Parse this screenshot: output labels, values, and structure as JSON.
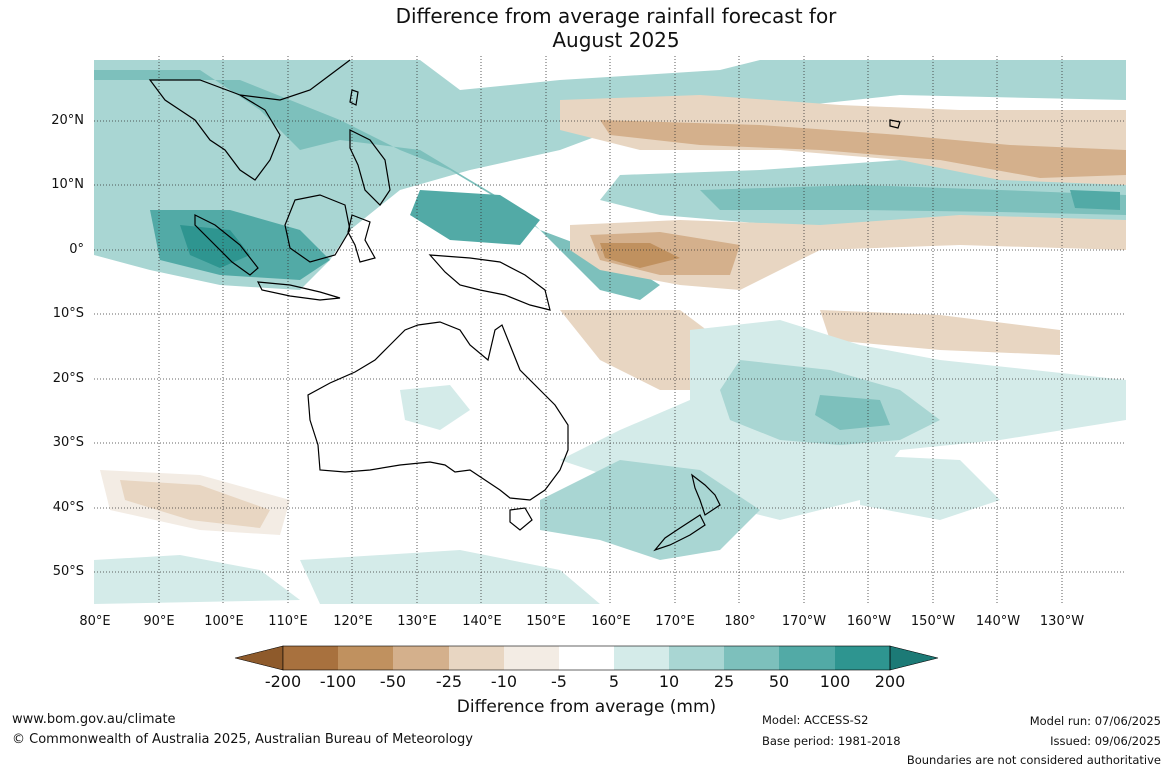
{
  "title": {
    "line1": "Difference from average rainfall forecast for",
    "line2": "August 2025"
  },
  "map": {
    "latitude_labels": [
      "20°N",
      "10°N",
      "0°",
      "10°S",
      "20°S",
      "30°S",
      "40°S",
      "50°S"
    ],
    "longitude_labels": [
      "80°E",
      "90°E",
      "100°E",
      "110°E",
      "120°E",
      "130°E",
      "140°E",
      "150°E",
      "160°E",
      "170°E",
      "180°",
      "170°W",
      "160°W",
      "150°W",
      "140°W",
      "130°W"
    ],
    "extent": {
      "lon_min": 80,
      "lon_max": 240,
      "lat_min": -55,
      "lat_max": 30
    }
  },
  "colorbar": {
    "ticks": [
      "-200",
      "-100",
      "-50",
      "-25",
      "-10",
      "-5",
      "5",
      "10",
      "25",
      "50",
      "100",
      "200"
    ],
    "colors": [
      "#8e5a2b",
      "#a8713e",
      "#c0915f",
      "#d4b08c",
      "#e8d6c2",
      "#f3ece4",
      "#ffffff",
      "#d4ebe9",
      "#a9d6d3",
      "#7dc0bc",
      "#52aaa6",
      "#2e9590",
      "#1c7a76"
    ],
    "label": "Difference from average (mm)"
  },
  "footer": {
    "website": "www.bom.gov.au/climate",
    "copyright": "© Commonwealth of Australia 2025, Australian Bureau of Meteorology",
    "model": "Model: ACCESS-S2",
    "base_period": "Base period: 1981-2018",
    "model_run": "Model run: 07/06/2025",
    "issued": "Issued: 09/06/2025",
    "boundaries_note": "Boundaries are not considered authoritative"
  }
}
